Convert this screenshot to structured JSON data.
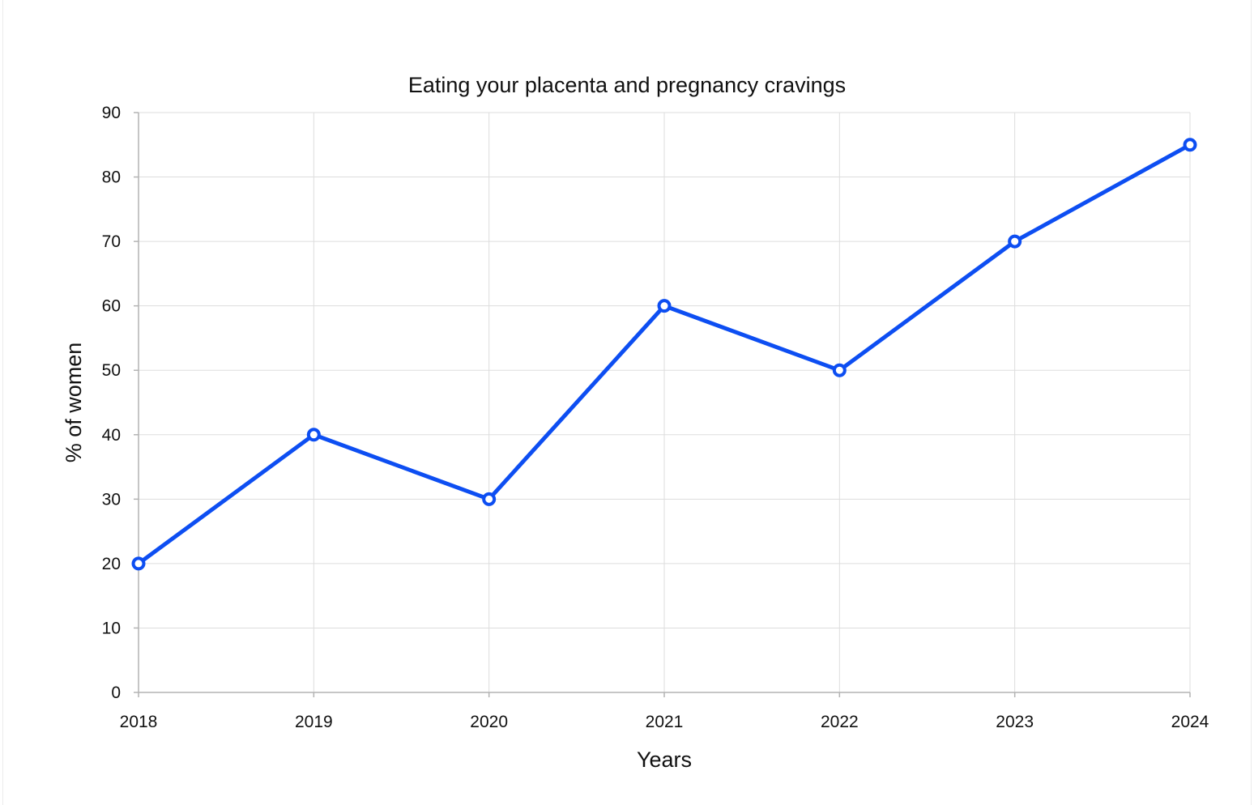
{
  "chart_data": {
    "type": "line",
    "title": "Eating your placenta and pregnancy cravings",
    "xlabel": "Years",
    "ylabel": "% of women",
    "x": [
      "2018",
      "2019",
      "2020",
      "2021",
      "2022",
      "2023",
      "2024"
    ],
    "series": [
      {
        "values": [
          20,
          40,
          30,
          60,
          50,
          70,
          85
        ],
        "color": "#0d4ef2"
      }
    ],
    "ylim": [
      0,
      90
    ],
    "yticks": [
      0,
      10,
      20,
      30,
      40,
      50,
      60,
      70,
      80,
      90
    ],
    "grid": true,
    "legend": "none"
  }
}
